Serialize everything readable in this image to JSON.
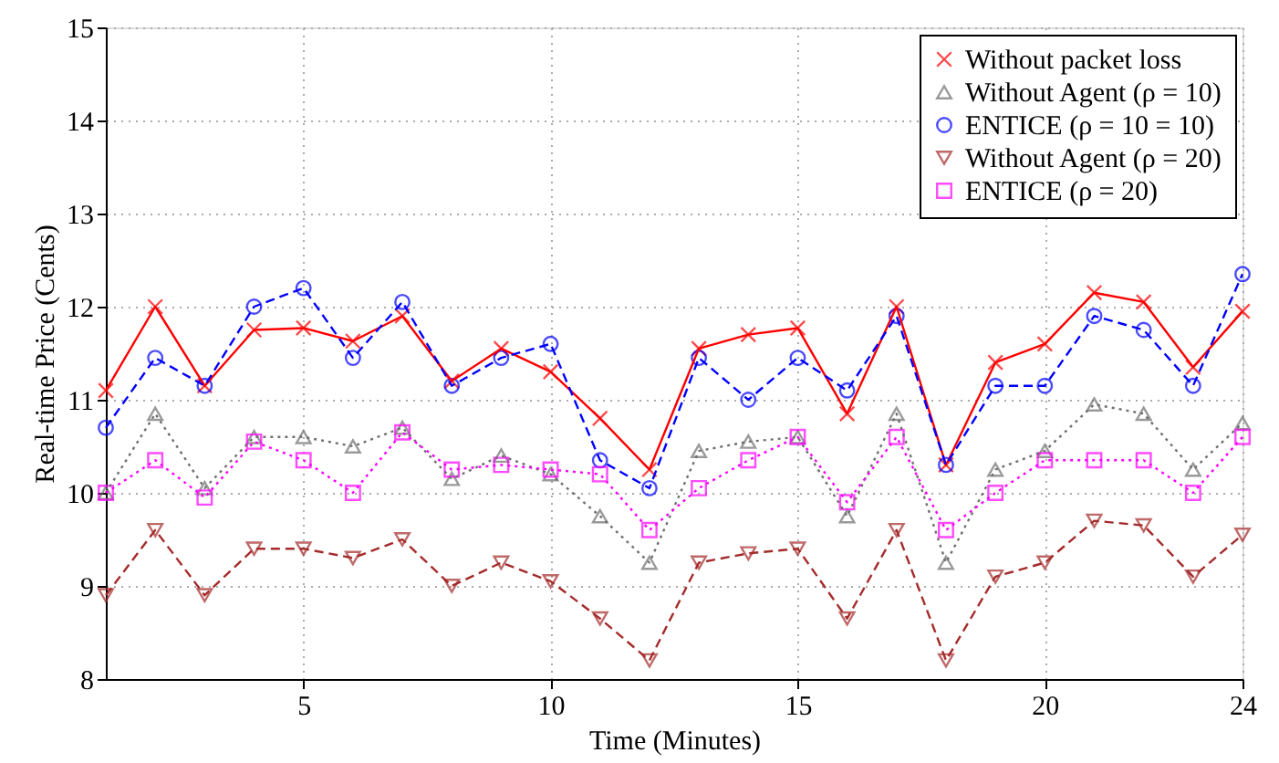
{
  "chart_data": {
    "type": "line",
    "xlabel": "Time (Minutes)",
    "ylabel": "Real-time Price (Cents)",
    "x": [
      1,
      2,
      3,
      4,
      5,
      6,
      7,
      8,
      9,
      10,
      11,
      12,
      13,
      14,
      15,
      16,
      17,
      18,
      19,
      20,
      21,
      22,
      23,
      24
    ],
    "xlim": [
      1,
      24
    ],
    "xticks": [
      5,
      10,
      15,
      20,
      24
    ],
    "ylim": [
      8,
      15
    ],
    "yticks": [
      8,
      9,
      10,
      11,
      12,
      13,
      14,
      15
    ],
    "grid": true,
    "legend": "top right",
    "series": [
      {
        "name": "Without packet loss",
        "color": "#ff0000",
        "marker": "cross",
        "line_style": "solid",
        "values": [
          11.1,
          12.0,
          11.15,
          11.75,
          11.77,
          11.63,
          11.9,
          11.2,
          11.55,
          11.3,
          10.8,
          10.25,
          11.55,
          11.7,
          11.77,
          10.85,
          12.0,
          10.3,
          11.4,
          11.6,
          12.15,
          12.05,
          11.35,
          11.95
        ]
      },
      {
        "name": "Without Agent (ρ = 10)",
        "color": "#707070",
        "marker": "triangle",
        "line_style": "dotted",
        "values": [
          10.0,
          10.85,
          10.05,
          10.6,
          10.6,
          10.5,
          10.7,
          10.15,
          10.4,
          10.2,
          9.75,
          9.25,
          10.45,
          10.55,
          10.6,
          9.75,
          10.85,
          9.25,
          10.25,
          10.45,
          10.95,
          10.85,
          10.25,
          10.75
        ]
      },
      {
        "name": "ENTICE (ρ = 10 = 10)",
        "color": "#0000ff",
        "marker": "circle",
        "line_style": "dashed",
        "values": [
          10.7,
          11.45,
          11.15,
          12.0,
          12.2,
          11.45,
          12.05,
          11.15,
          11.45,
          11.6,
          10.35,
          10.05,
          11.45,
          11.0,
          11.45,
          11.1,
          11.9,
          10.3,
          11.15,
          11.15,
          11.9,
          11.75,
          11.15,
          12.35
        ]
      },
      {
        "name": "Without Agent (ρ = 20)",
        "color": "#a52a2a",
        "marker": "triangle-down",
        "line_style": "dashed",
        "values": [
          8.9,
          9.6,
          8.9,
          9.4,
          9.4,
          9.3,
          9.5,
          9.0,
          9.25,
          9.05,
          8.65,
          8.2,
          9.25,
          9.35,
          9.4,
          8.65,
          9.6,
          8.2,
          9.1,
          9.25,
          9.7,
          9.65,
          9.1,
          9.55
        ]
      },
      {
        "name": "ENTICE (ρ = 20)",
        "color": "#ff00ff",
        "marker": "square",
        "line_style": "dotted",
        "values": [
          10.0,
          10.35,
          9.95,
          10.55,
          10.35,
          10.0,
          10.65,
          10.25,
          10.3,
          10.25,
          10.2,
          9.6,
          10.05,
          10.35,
          10.6,
          9.9,
          10.6,
          9.6,
          10.0,
          10.35,
          10.35,
          10.35,
          10.0,
          10.6
        ]
      }
    ]
  }
}
